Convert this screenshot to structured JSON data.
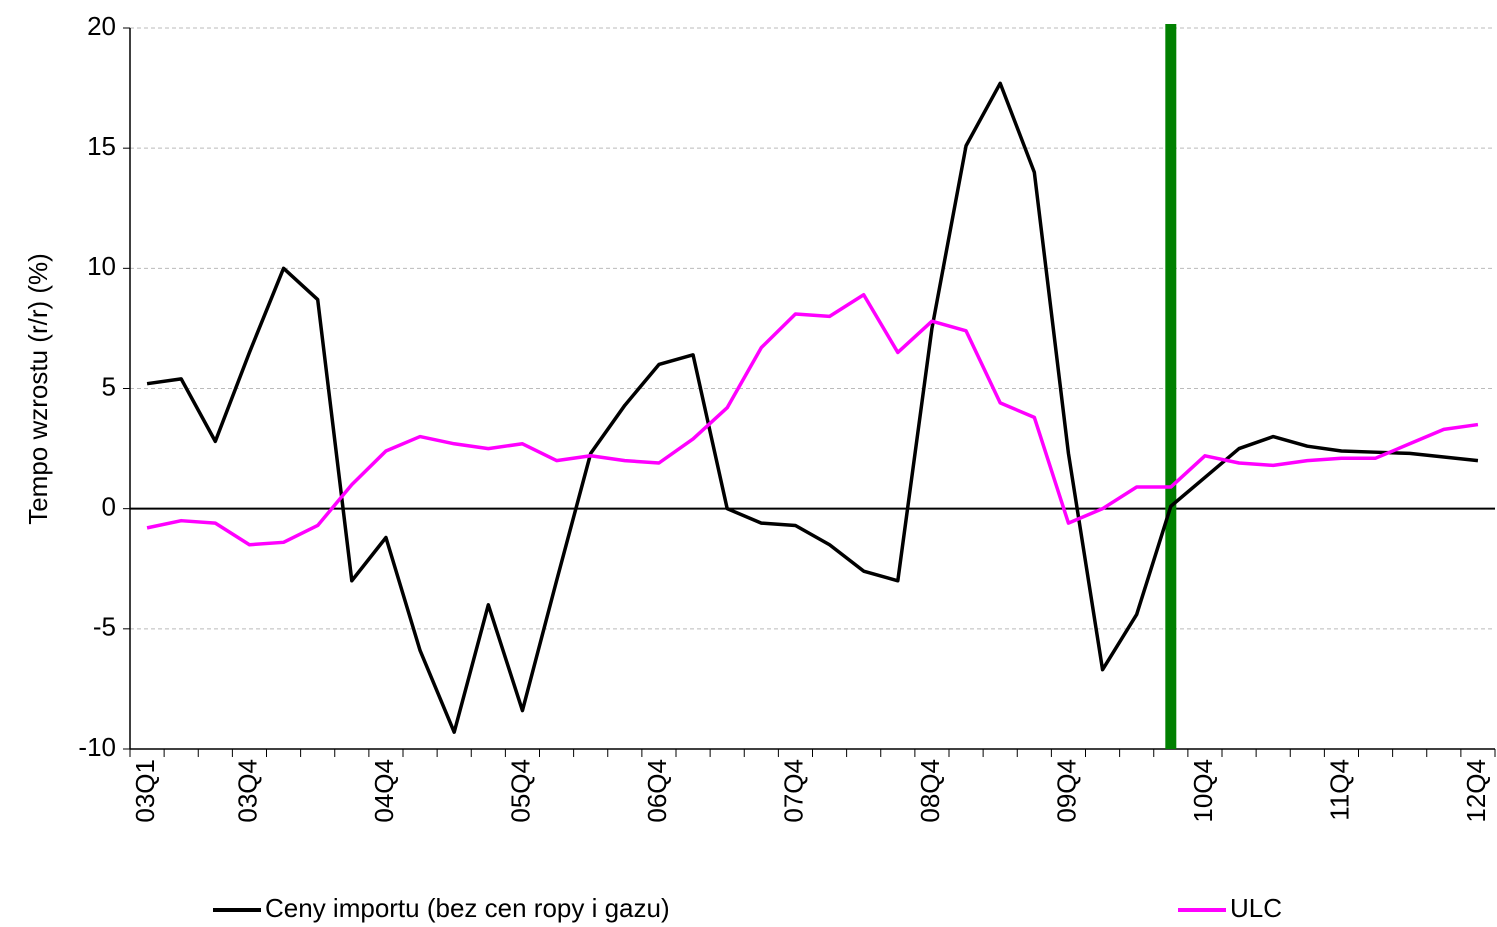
{
  "chart_data": {
    "type": "line",
    "y_label": "Tempo wzrostu (r/r) (%)",
    "categories": [
      "03Q1",
      null,
      null,
      "03Q4",
      null,
      null,
      null,
      "04Q4",
      null,
      null,
      null,
      "05Q4",
      null,
      null,
      null,
      "06Q4",
      null,
      null,
      null,
      "07Q4",
      null,
      null,
      null,
      "08Q4",
      null,
      null,
      null,
      "09Q4",
      null,
      null,
      null,
      "10Q4",
      null,
      null,
      null,
      "11Q4",
      null,
      null,
      null,
      "12Q4"
    ],
    "series": [
      {
        "name": "Ceny importu (bez cen ropy i gazu)",
        "color": "#000000",
        "values": [
          5.2,
          5.4,
          2.8,
          6.5,
          10.0,
          8.7,
          -3.0,
          -1.2,
          -5.9,
          -9.3,
          -4.0,
          -8.4,
          -3.0,
          2.3,
          4.3,
          6.0,
          6.4,
          0.0,
          -0.6,
          -0.7,
          -1.5,
          -2.6,
          -3.0,
          7.5,
          15.1,
          17.7,
          14.0,
          2.3,
          -6.7,
          -4.4,
          0.1,
          1.3,
          2.5,
          3.0,
          2.6,
          2.4,
          2.35,
          2.3,
          2.15,
          2.0
        ]
      },
      {
        "name": "ULC",
        "color": "#ff00ff",
        "values": [
          -0.8,
          -0.5,
          -0.6,
          -1.5,
          -1.4,
          -0.7,
          1.0,
          2.4,
          3.0,
          2.7,
          2.5,
          2.7,
          2.0,
          2.2,
          2.0,
          1.9,
          2.9,
          4.2,
          6.7,
          8.1,
          8.0,
          8.9,
          6.5,
          7.8,
          7.4,
          4.4,
          3.8,
          -0.6,
          0.0,
          0.9,
          0.9,
          2.2,
          1.9,
          1.8,
          2.0,
          2.1,
          2.1,
          2.7,
          3.3,
          3.5
        ]
      }
    ],
    "ylim": [
      -10,
      20
    ],
    "yticks": [
      -10,
      -5,
      0,
      5,
      10,
      15,
      20
    ],
    "grid": true,
    "vertical_marker": {
      "category_index": 30,
      "color": "#008000"
    },
    "legend": "bottom"
  }
}
